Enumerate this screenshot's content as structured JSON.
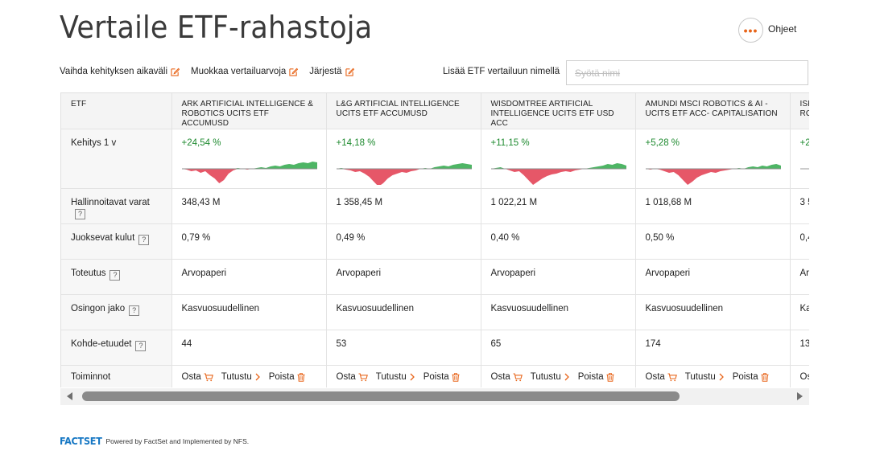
{
  "page": {
    "title": "Vertaile ETF-rahastoja",
    "help_label": "Ohjeet",
    "help_icon": "ellipsis-icon"
  },
  "toolbar": {
    "change_period": "Vaihda kehityksen aikaväli",
    "edit_values": "Muokkaa vertailuarvoja",
    "sort": "Järjestä",
    "add_label": "Lisää ETF vertailuun nimellä",
    "search_placeholder": "Syötä nimi"
  },
  "table": {
    "header_label": "ETF",
    "row_labels": {
      "performance": "Kehitys 1 v",
      "aum": "Hallinnoitavat varat",
      "fees": "Juoksevat kulut",
      "replication": "Toteutus",
      "distribution": "Osingon jako",
      "holdings": "Kohde-etuudet",
      "actions": "Toiminnot"
    },
    "help_glyph": "?",
    "action_labels": {
      "buy": "Osta",
      "explore": "Tutustu",
      "remove": "Poista"
    },
    "etfs": [
      {
        "name": "ARK ARTIFICIAL INTELLIGENCE & ROBOTICS UCITS ETF ACCUMUSD",
        "perf": "+24,54 %",
        "aum": "348,43 M",
        "fees": "0,79 %",
        "replication": "Arvopaperi",
        "distribution": "Kasvuosuudellinen",
        "holdings": "44"
      },
      {
        "name": "L&G ARTIFICIAL INTELLIGENCE UCITS ETF ACCUMUSD",
        "perf": "+14,18 %",
        "aum": "1 358,45 M",
        "fees": "0,49 %",
        "replication": "Arvopaperi",
        "distribution": "Kasvuosuudellinen",
        "holdings": "53"
      },
      {
        "name": "WISDOMTREE ARTIFICIAL INTELLIGENCE UCITS ETF USD ACC",
        "perf": "+11,15 %",
        "aum": "1 022,21 M",
        "fees": "0,40 %",
        "replication": "Arvopaperi",
        "distribution": "Kasvuosuudellinen",
        "holdings": "65"
      },
      {
        "name": "AMUNDI MSCI ROBOTICS & AI -UCITS ETF ACC- CAPITALISATION",
        "perf": "+5,28 %",
        "aum": "1 018,68 M",
        "fees": "0,50 %",
        "replication": "Arvopaperi",
        "distribution": "Kasvuosuudellinen",
        "holdings": "174"
      },
      {
        "name": "ISHARES AUTOMATION & ROBOTICS UCITS ETF",
        "perf": "+2",
        "aum": "3 5",
        "fees": "0,4",
        "replication": "Ar",
        "distribution": "Ka",
        "holdings": "13"
      }
    ]
  },
  "colors": {
    "accent": "#e8651a",
    "positive": "#1e8a2f",
    "negative_fill": "#e23a4e",
    "positive_fill": "#2fa84a",
    "brand": "#1778c4"
  },
  "footer": {
    "logo": "FACTSET",
    "text": "Powered by FactSet and Implemented by NFS."
  }
}
